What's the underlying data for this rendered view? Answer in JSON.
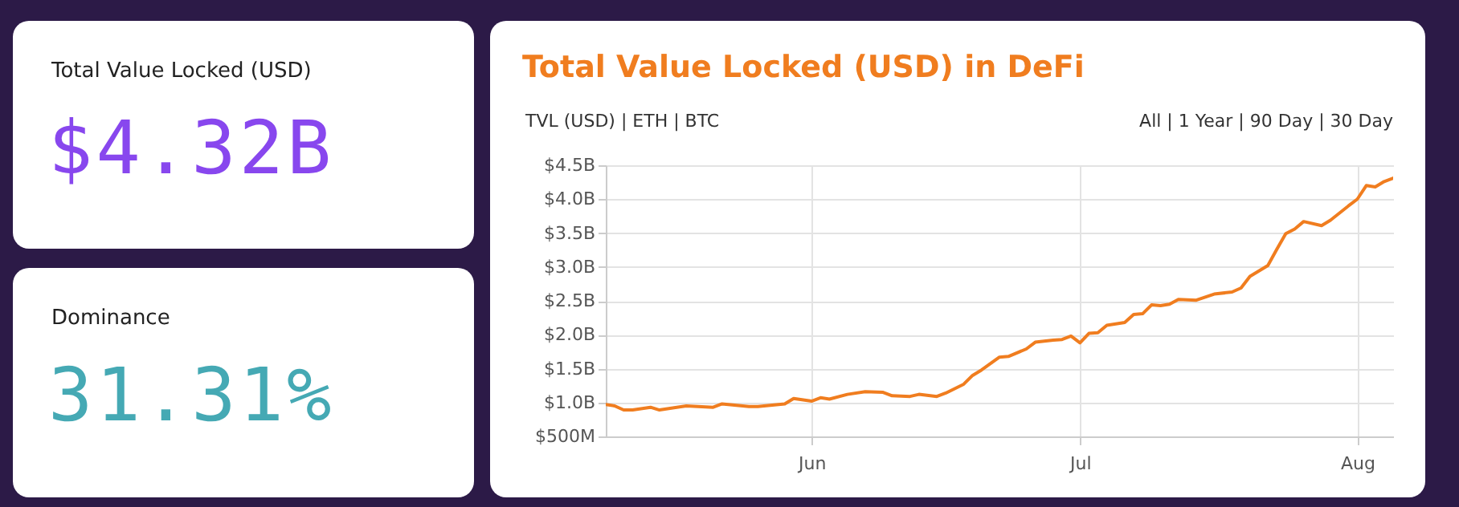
{
  "chart_data": [
    {
      "type": "other",
      "title": "Total Value Locked (USD)",
      "annotations": [
        "$4.32B"
      ],
      "color": "#8847ee"
    },
    {
      "type": "other",
      "title": "Dominance",
      "annotations": [
        "31.31%"
      ],
      "color": "#45a9b4"
    },
    {
      "type": "line",
      "title": "Total Value Locked (USD) in DeFi",
      "annotations": [
        "TVL (USD) | ETH | BTC",
        "All | 1 Year | 90 Day | 30 Day"
      ],
      "grid": true,
      "xlim": [
        "--05-09",
        "--08-05"
      ],
      "xticks": [
        {
          "value": "--06-01",
          "label": "Jun"
        },
        {
          "value": "--07-01",
          "label": "Jul"
        },
        {
          "value": "--08-01",
          "label": "Aug"
        }
      ],
      "ylim": [
        500000000,
        4500000000
      ],
      "yticks": [
        {
          "value": 500000000,
          "label": "$500M"
        },
        {
          "value": 1000000000,
          "label": "$1.0B"
        },
        {
          "value": 1500000000,
          "label": "$1.5B"
        },
        {
          "value": 2000000000,
          "label": "$2.0B"
        },
        {
          "value": 2500000000,
          "label": "$2.5B"
        },
        {
          "value": 3000000000,
          "label": "$3.0B"
        },
        {
          "value": 3500000000,
          "label": "$3.5B"
        },
        {
          "value": 4000000000,
          "label": "$4.0B"
        },
        {
          "value": 4500000000,
          "label": "$4.5B"
        }
      ],
      "series": [
        {
          "color": "#f07d1f",
          "x": [
            "--05-09",
            "--05-10",
            "--05-11",
            "--05-12",
            "--05-14",
            "--05-15",
            "--05-18",
            "--05-21",
            "--05-22",
            "--05-25",
            "--05-26",
            "--05-29",
            "--05-30",
            "--06-01",
            "--06-02",
            "--06-03",
            "--06-05",
            "--06-07",
            "--06-09",
            "--06-10",
            "--06-12",
            "--06-13",
            "--06-15",
            "--06-16",
            "--06-18",
            "--06-19",
            "--06-20",
            "--06-22",
            "--06-23",
            "--06-25",
            "--06-26",
            "--06-28",
            "--06-29",
            "--06-30",
            "--07-01",
            "--07-02",
            "--07-03",
            "--07-04",
            "--07-06",
            "--07-07",
            "--07-08",
            "--07-09",
            "--07-10",
            "--07-11",
            "--07-12",
            "--07-14",
            "--07-16",
            "--07-18",
            "--07-19",
            "--07-20",
            "--07-22",
            "--07-23",
            "--07-24",
            "--07-25",
            "--07-26",
            "--07-28",
            "--07-29",
            "--07-31",
            "--08-01",
            "--08-02",
            "--08-03",
            "--08-04",
            "--08-05"
          ],
          "values": [
            970000000,
            950000000,
            890000000,
            890000000,
            930000000,
            890000000,
            950000000,
            930000000,
            980000000,
            940000000,
            940000000,
            980000000,
            1060000000,
            1020000000,
            1070000000,
            1050000000,
            1120000000,
            1160000000,
            1150000000,
            1100000000,
            1090000000,
            1120000000,
            1090000000,
            1140000000,
            1270000000,
            1400000000,
            1480000000,
            1670000000,
            1680000000,
            1790000000,
            1890000000,
            1920000000,
            1930000000,
            1980000000,
            1880000000,
            2020000000,
            2030000000,
            2140000000,
            2180000000,
            2300000000,
            2310000000,
            2440000000,
            2430000000,
            2450000000,
            2520000000,
            2510000000,
            2600000000,
            2630000000,
            2690000000,
            2860000000,
            3020000000,
            3260000000,
            3490000000,
            3560000000,
            3670000000,
            3610000000,
            3690000000,
            3900000000,
            4000000000,
            4200000000,
            4180000000,
            4260000000,
            4310000000
          ]
        }
      ]
    }
  ]
}
